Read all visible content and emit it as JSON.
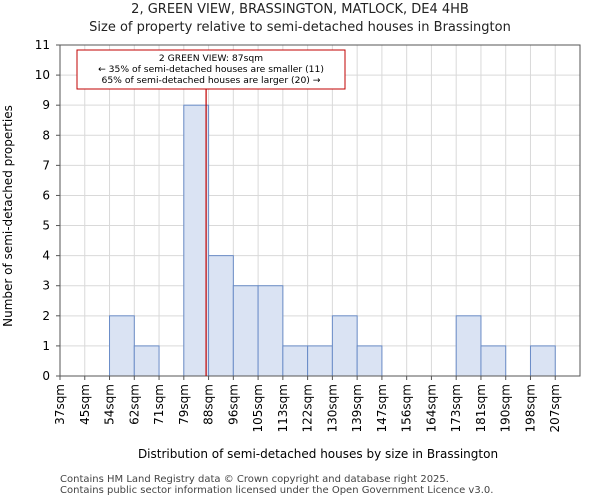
{
  "title_line1": "2, GREEN VIEW, BRASSINGTON, MATLOCK, DE4 4HB",
  "title_line2": "Size of property relative to semi-detached houses in Brassington",
  "footer_line1": "Contains HM Land Registry data © Crown copyright and database right 2025.",
  "footer_line2": "Contains public sector information licensed under the Open Government Licence v3.0.",
  "colors": {
    "bar_fill": "#dae3f3",
    "bar_stroke": "#6a8cc7",
    "marker": "#c00000",
    "annotation_border": "#c00000"
  },
  "chart_data": {
    "type": "bar",
    "title": "Size of property relative to semi-detached houses in Brassington",
    "xlabel": "Distribution of semi-detached houses by size in Brassington",
    "ylabel": "Number of semi-detached properties",
    "categories": [
      "37sqm",
      "45sqm",
      "54sqm",
      "62sqm",
      "71sqm",
      "79sqm",
      "88sqm",
      "96sqm",
      "105sqm",
      "113sqm",
      "122sqm",
      "130sqm",
      "139sqm",
      "147sqm",
      "156sqm",
      "164sqm",
      "173sqm",
      "181sqm",
      "190sqm",
      "198sqm",
      "207sqm"
    ],
    "values": [
      0,
      0,
      2,
      1,
      0,
      9,
      4,
      3,
      3,
      1,
      1,
      2,
      1,
      0,
      0,
      0,
      2,
      1,
      0,
      1,
      0
    ],
    "ylim": [
      0,
      11
    ],
    "yticks": [
      0,
      1,
      2,
      3,
      4,
      5,
      6,
      7,
      8,
      9,
      10,
      11
    ],
    "grid": true,
    "marker": {
      "value_sqm": 87,
      "bin_position": 5.9
    },
    "annotation": {
      "line1": "2 GREEN VIEW: 87sqm",
      "line2": "← 35% of semi-detached houses are smaller (11)",
      "line3": "65% of semi-detached houses are larger (20) →"
    }
  }
}
